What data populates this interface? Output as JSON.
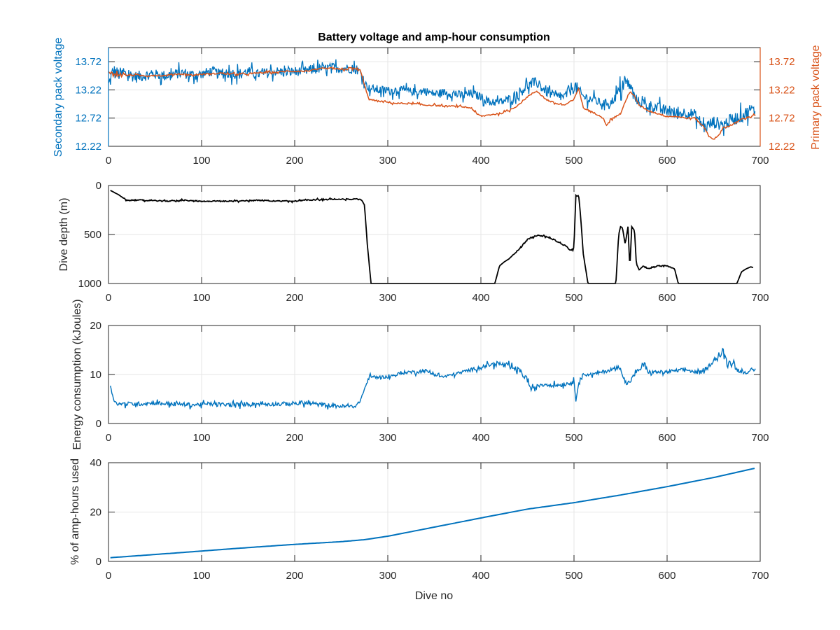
{
  "chart_data": [
    {
      "type": "line",
      "title": "Battery voltage and amp-hour consumption",
      "xlabel": "",
      "ylabel_left": "Secondary pack voltage",
      "ylabel_right": "Primary pack voltage",
      "xlim": [
        0,
        700
      ],
      "ylim": [
        12.22,
        13.97
      ],
      "xticks": [
        0,
        100,
        200,
        300,
        400,
        500,
        600,
        700
      ],
      "yticks": [
        12.22,
        12.72,
        13.22,
        13.72
      ],
      "ytick_labels": [
        "12.22",
        "12.72",
        "13.22",
        "13.72"
      ],
      "grid": true,
      "colors": {
        "left": "#0072BD",
        "right": "#D95319"
      },
      "series": [
        {
          "axis": "left",
          "x": [
            0,
            5,
            10,
            20,
            30,
            40,
            50,
            60,
            70,
            80,
            90,
            100,
            110,
            120,
            130,
            140,
            150,
            160,
            170,
            180,
            190,
            200,
            210,
            220,
            230,
            240,
            250,
            260,
            265,
            270,
            275,
            280,
            290,
            300,
            310,
            320,
            330,
            340,
            350,
            360,
            370,
            380,
            390,
            400,
            410,
            420,
            430,
            440,
            450,
            460,
            470,
            480,
            490,
            500,
            505,
            510,
            520,
            530,
            540,
            550,
            555,
            560,
            565,
            570,
            580,
            590,
            600,
            610,
            620,
            630,
            640,
            650,
            660,
            670,
            680,
            690,
            695
          ],
          "y": [
            13.3,
            13.55,
            13.5,
            13.5,
            13.45,
            13.48,
            13.5,
            13.47,
            13.5,
            13.52,
            13.48,
            13.5,
            13.55,
            13.5,
            13.52,
            13.5,
            13.55,
            13.5,
            13.52,
            13.55,
            13.53,
            13.55,
            13.55,
            13.58,
            13.6,
            13.62,
            13.6,
            13.6,
            13.58,
            13.55,
            13.35,
            13.25,
            13.22,
            13.2,
            13.22,
            13.2,
            13.18,
            13.2,
            13.15,
            13.18,
            13.15,
            13.12,
            13.15,
            13.1,
            13.0,
            13.0,
            13.05,
            13.15,
            13.3,
            13.35,
            13.2,
            13.1,
            13.1,
            13.3,
            13.2,
            13.1,
            13.05,
            12.98,
            13.0,
            13.22,
            13.35,
            13.3,
            13.1,
            13.0,
            12.95,
            12.9,
            12.85,
            12.8,
            12.82,
            12.78,
            12.55,
            12.65,
            12.6,
            12.7,
            12.75,
            12.88,
            12.82
          ],
          "spread": [
            0.2,
            0.2,
            0.18,
            0.15,
            0.15,
            0.14,
            0.12,
            0.14,
            0.13,
            0.13,
            0.15,
            0.12,
            0.13,
            0.13,
            0.13,
            0.14,
            0.12,
            0.12,
            0.13,
            0.12,
            0.13,
            0.12,
            0.12,
            0.14,
            0.1,
            0.12,
            0.12,
            0.12,
            0.12,
            0.1,
            0.08,
            0.1,
            0.12,
            0.12,
            0.1,
            0.1,
            0.1,
            0.1,
            0.1,
            0.1,
            0.1,
            0.12,
            0.12,
            0.1,
            0.1,
            0.1,
            0.12,
            0.14,
            0.14,
            0.14,
            0.14,
            0.12,
            0.12,
            0.2,
            0.16,
            0.12,
            0.12,
            0.1,
            0.1,
            0.18,
            0.15,
            0.15,
            0.12,
            0.12,
            0.14,
            0.14,
            0.14,
            0.16,
            0.14,
            0.14,
            0.16,
            0.16,
            0.16,
            0.16,
            0.16,
            0.16,
            0.14
          ]
        },
        {
          "axis": "right",
          "x": [
            0,
            5,
            10,
            20,
            30,
            40,
            50,
            60,
            70,
            80,
            90,
            100,
            110,
            120,
            130,
            140,
            150,
            160,
            170,
            180,
            190,
            200,
            210,
            220,
            230,
            240,
            250,
            260,
            270,
            275,
            280,
            290,
            300,
            310,
            320,
            330,
            340,
            350,
            360,
            370,
            380,
            390,
            395,
            400,
            410,
            420,
            430,
            440,
            450,
            460,
            470,
            480,
            490,
            500,
            505,
            510,
            520,
            530,
            535,
            540,
            550,
            555,
            560,
            565,
            570,
            580,
            590,
            600,
            610,
            620,
            630,
            640,
            645,
            650,
            655,
            660,
            670,
            680,
            690,
            695
          ],
          "y": [
            13.55,
            13.5,
            13.5,
            13.48,
            13.48,
            13.47,
            13.48,
            13.47,
            13.5,
            13.5,
            13.48,
            13.5,
            13.5,
            13.52,
            13.5,
            13.5,
            13.5,
            13.52,
            13.53,
            13.53,
            13.55,
            13.55,
            13.55,
            13.57,
            13.6,
            13.6,
            13.58,
            13.6,
            13.58,
            13.3,
            13.05,
            13.02,
            13.0,
            12.98,
            12.98,
            12.97,
            12.95,
            12.95,
            12.93,
            12.93,
            12.92,
            12.9,
            12.8,
            12.75,
            12.78,
            12.8,
            12.85,
            12.95,
            13.1,
            13.2,
            13.05,
            12.98,
            12.95,
            13.05,
            13.25,
            12.9,
            12.82,
            12.75,
            12.6,
            12.7,
            12.8,
            13.0,
            13.2,
            13.1,
            12.95,
            12.85,
            12.8,
            12.75,
            12.75,
            12.72,
            12.72,
            12.55,
            12.4,
            12.35,
            12.4,
            12.55,
            12.6,
            12.7,
            12.75,
            12.78
          ],
          "spread": [
            0.02,
            0.06,
            0.04,
            0.02,
            0.02,
            0.02,
            0.02,
            0.02,
            0.02,
            0.02,
            0.02,
            0.02,
            0.02,
            0.02,
            0.02,
            0.02,
            0.02,
            0.02,
            0.02,
            0.02,
            0.02,
            0.02,
            0.02,
            0.02,
            0.02,
            0.02,
            0.02,
            0.04,
            0.04,
            0.02,
            0.02,
            0.02,
            0.02,
            0.02,
            0.02,
            0.02,
            0.02,
            0.02,
            0.02,
            0.02,
            0.02,
            0.02,
            0.02,
            0.02,
            0.02,
            0.02,
            0.02,
            0.02,
            0.02,
            0.02,
            0.02,
            0.02,
            0.02,
            0.02,
            0.02,
            0.02,
            0.02,
            0.02,
            0.02,
            0.02,
            0.02,
            0.02,
            0.02,
            0.02,
            0.02,
            0.02,
            0.02,
            0.02,
            0.02,
            0.02,
            0.02,
            0.02,
            0.02,
            0.02,
            0.02,
            0.02,
            0.02,
            0.02,
            0.02,
            0.02
          ]
        }
      ]
    },
    {
      "type": "line",
      "title": "",
      "xlabel": "",
      "ylabel": "Dive depth (m)",
      "xlim": [
        0,
        700
      ],
      "ylim": [
        0,
        1000
      ],
      "y_reversed": true,
      "xticks": [
        0,
        100,
        200,
        300,
        400,
        500,
        600,
        700
      ],
      "yticks": [
        0,
        500,
        1000
      ],
      "ytick_labels": [
        "0",
        "500",
        "1000"
      ],
      "grid": true,
      "colors": {
        "line": "#000000"
      },
      "series": [
        {
          "x": [
            2,
            10,
            20,
            30,
            40,
            60,
            80,
            100,
            120,
            140,
            160,
            180,
            200,
            220,
            240,
            260,
            268,
            272,
            275,
            278,
            282,
            300,
            350,
            400,
            415,
            420,
            425,
            430,
            440,
            450,
            460,
            470,
            480,
            490,
            495,
            499,
            500,
            502,
            503,
            505,
            507,
            510,
            515,
            520,
            540,
            545,
            548,
            550,
            552,
            555,
            558,
            560,
            562,
            565,
            567,
            570,
            575,
            580,
            590,
            600,
            608,
            612,
            650,
            675,
            680,
            685,
            690,
            693
          ],
          "y": [
            50,
            90,
            150,
            150,
            150,
            160,
            150,
            160,
            160,
            160,
            150,
            160,
            160,
            145,
            140,
            140,
            140,
            150,
            200,
            600,
            1000,
            1000,
            1000,
            1000,
            1000,
            820,
            780,
            750,
            660,
            550,
            510,
            520,
            560,
            610,
            650,
            660,
            620,
            100,
            110,
            100,
            300,
            700,
            1000,
            1000,
            1000,
            1000,
            500,
            420,
            430,
            600,
            420,
            850,
            420,
            460,
            800,
            860,
            820,
            850,
            820,
            820,
            850,
            1000,
            1000,
            1000,
            880,
            850,
            830,
            840
          ],
          "spread": [
            0,
            0,
            10,
            8,
            8,
            10,
            8,
            8,
            8,
            8,
            8,
            8,
            8,
            8,
            8,
            8,
            8,
            0,
            0,
            0,
            0,
            0,
            0,
            0,
            0,
            0,
            0,
            0,
            8,
            8,
            8,
            8,
            8,
            8,
            8,
            8,
            0,
            0,
            0,
            0,
            0,
            0,
            0,
            0,
            0,
            0,
            0,
            0,
            0,
            0,
            0,
            0,
            0,
            0,
            0,
            0,
            8,
            8,
            8,
            8,
            0,
            0,
            0,
            0,
            0,
            0,
            0,
            0
          ]
        }
      ]
    },
    {
      "type": "line",
      "title": "",
      "xlabel": "",
      "ylabel": "Energy consumption (kJoules)",
      "xlim": [
        0,
        700
      ],
      "ylim": [
        0,
        20
      ],
      "xticks": [
        0,
        100,
        200,
        300,
        400,
        500,
        600,
        700
      ],
      "yticks": [
        0,
        10,
        20
      ],
      "ytick_labels": [
        "0",
        "10",
        "20"
      ],
      "grid": true,
      "colors": {
        "line": "#0072BD"
      },
      "series": [
        {
          "x": [
            2,
            5,
            10,
            20,
            30,
            50,
            70,
            90,
            110,
            130,
            150,
            170,
            190,
            210,
            230,
            250,
            265,
            270,
            275,
            280,
            290,
            300,
            310,
            320,
            330,
            340,
            350,
            360,
            370,
            380,
            390,
            400,
            410,
            420,
            430,
            440,
            450,
            455,
            460,
            465,
            470,
            480,
            490,
            500,
            502,
            505,
            510,
            520,
            530,
            540,
            550,
            555,
            560,
            565,
            570,
            575,
            580,
            590,
            600,
            610,
            620,
            630,
            640,
            650,
            655,
            660,
            665,
            670,
            675,
            680,
            690,
            695
          ],
          "y": [
            8,
            5,
            4,
            4,
            4,
            4.2,
            4,
            3.8,
            4,
            3.8,
            4,
            4,
            4,
            4.2,
            3.8,
            3.5,
            3.5,
            4.5,
            7,
            9.5,
            9.5,
            9.5,
            10,
            10.5,
            10.5,
            10.8,
            10,
            9.5,
            10,
            10.5,
            11,
            11.5,
            12,
            12.2,
            11.5,
            11,
            9,
            6.5,
            7.5,
            8,
            8,
            7.8,
            8,
            8.5,
            4.5,
            8.5,
            10,
            10,
            10.5,
            11,
            11.5,
            8,
            8.5,
            10,
            11,
            12,
            10.5,
            10.5,
            10.5,
            10.8,
            11,
            10.5,
            10.5,
            13,
            13.5,
            14.5,
            12,
            13,
            11,
            10.5,
            10.5,
            11
          ],
          "spread": [
            0.3,
            0.4,
            0.5,
            0.6,
            0.6,
            0.6,
            0.6,
            0.6,
            0.6,
            0.6,
            0.6,
            0.6,
            0.6,
            0.6,
            0.6,
            0.6,
            0.3,
            0.3,
            0.5,
            0.5,
            0.4,
            0.4,
            0.5,
            0.5,
            0.5,
            0.5,
            0.4,
            0.4,
            0.4,
            0.5,
            0.5,
            0.5,
            0.6,
            0.8,
            0.8,
            0.7,
            1,
            1,
            0.6,
            0.6,
            0.6,
            0.6,
            0.6,
            0.6,
            0,
            0.5,
            0.5,
            0.5,
            0.5,
            0.6,
            0.6,
            0.6,
            0.6,
            0.6,
            0.6,
            1.5,
            0.5,
            0.5,
            0.5,
            0.5,
            0.5,
            0.5,
            0.5,
            0.6,
            1,
            1.5,
            1,
            1,
            0.6,
            0.5,
            0.5,
            0.5
          ]
        }
      ]
    },
    {
      "type": "line",
      "title": "",
      "xlabel": "Dive no",
      "ylabel": "% of amp-hours used",
      "xlim": [
        0,
        700
      ],
      "ylim": [
        0,
        40
      ],
      "xticks": [
        0,
        100,
        200,
        300,
        400,
        500,
        600,
        700
      ],
      "yticks": [
        0,
        20,
        40
      ],
      "ytick_labels": [
        "0",
        "20",
        "40"
      ],
      "grid": true,
      "colors": {
        "line": "#0072BD"
      },
      "series": [
        {
          "x": [
            2,
            50,
            100,
            150,
            200,
            250,
            275,
            300,
            350,
            400,
            450,
            500,
            550,
            600,
            650,
            695
          ],
          "y": [
            1.5,
            2.8,
            4.2,
            5.6,
            6.9,
            8,
            8.8,
            10.2,
            13.9,
            17.6,
            21.2,
            23.8,
            26.9,
            30.3,
            34,
            37.8
          ],
          "spread": [
            0,
            0,
            0,
            0,
            0,
            0,
            0,
            0,
            0,
            0,
            0,
            0,
            0,
            0,
            0,
            0
          ]
        }
      ]
    }
  ]
}
